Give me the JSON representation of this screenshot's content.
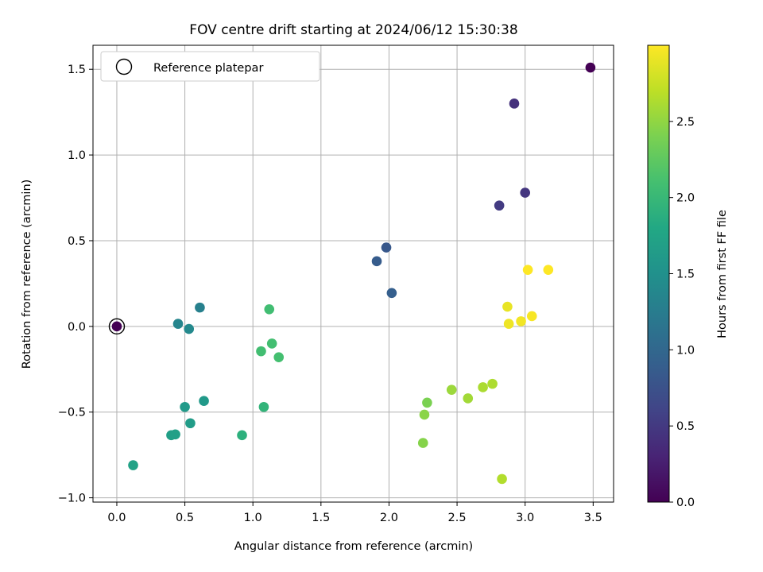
{
  "chart_data": {
    "type": "scatter",
    "title": "FOV centre drift starting at 2024/06/12 15:30:38",
    "xlabel": "Angular distance from reference (arcmin)",
    "ylabel": "Rotation from reference (arcmin)",
    "xlim": [
      -0.175,
      3.65
    ],
    "ylim": [
      -1.025,
      1.64
    ],
    "xticks": [
      0.0,
      0.5,
      1.0,
      1.5,
      2.0,
      2.5,
      3.0,
      3.5
    ],
    "xtick_labels": [
      "0.0",
      "0.5",
      "1.0",
      "1.5",
      "2.0",
      "2.5",
      "3.0",
      "3.5"
    ],
    "yticks": [
      -1.0,
      -0.5,
      0.0,
      0.5,
      1.0,
      1.5
    ],
    "ytick_labels": [
      "−1.0",
      "−0.5",
      "0.0",
      "0.5",
      "1.0",
      "1.5"
    ],
    "grid": true,
    "legend": {
      "placement": "top-left",
      "label": "Reference platepar"
    },
    "reference_point": {
      "x": 0.0,
      "y": 0.0
    },
    "colorbar": {
      "label": "Hours from first FF file",
      "colormap": "viridis",
      "range": [
        0.0,
        3.0
      ],
      "ticks": [
        0.0,
        0.5,
        1.0,
        1.5,
        2.0,
        2.5
      ],
      "tick_labels": [
        "0.0",
        "0.5",
        "1.0",
        "1.5",
        "2.0",
        "2.5"
      ]
    },
    "points": [
      {
        "x": 0.0,
        "y": 0.0,
        "c": 0.0
      },
      {
        "x": 3.48,
        "y": 1.51,
        "c": 0.0
      },
      {
        "x": 2.92,
        "y": 1.3,
        "c": 0.42
      },
      {
        "x": 3.0,
        "y": 0.78,
        "c": 0.47
      },
      {
        "x": 2.81,
        "y": 0.705,
        "c": 0.52
      },
      {
        "x": 1.98,
        "y": 0.46,
        "c": 0.82
      },
      {
        "x": 1.91,
        "y": 0.38,
        "c": 0.87
      },
      {
        "x": 2.02,
        "y": 0.195,
        "c": 0.9
      },
      {
        "x": 0.61,
        "y": 0.11,
        "c": 1.3
      },
      {
        "x": 0.45,
        "y": 0.015,
        "c": 1.35
      },
      {
        "x": 0.53,
        "y": -0.015,
        "c": 1.4
      },
      {
        "x": 0.64,
        "y": -0.435,
        "c": 1.6
      },
      {
        "x": 0.5,
        "y": -0.47,
        "c": 1.62
      },
      {
        "x": 0.54,
        "y": -0.565,
        "c": 1.65
      },
      {
        "x": 0.4,
        "y": -0.635,
        "c": 1.68
      },
      {
        "x": 0.43,
        "y": -0.63,
        "c": 1.7
      },
      {
        "x": 0.12,
        "y": -0.81,
        "c": 1.72
      },
      {
        "x": 0.92,
        "y": -0.635,
        "c": 1.9
      },
      {
        "x": 1.08,
        "y": -0.47,
        "c": 1.95
      },
      {
        "x": 1.12,
        "y": 0.1,
        "c": 2.07
      },
      {
        "x": 1.06,
        "y": -0.145,
        "c": 2.08
      },
      {
        "x": 1.14,
        "y": -0.1,
        "c": 2.09
      },
      {
        "x": 1.19,
        "y": -0.18,
        "c": 2.1
      },
      {
        "x": 2.28,
        "y": -0.445,
        "c": 2.4
      },
      {
        "x": 2.25,
        "y": -0.68,
        "c": 2.45
      },
      {
        "x": 2.26,
        "y": -0.515,
        "c": 2.47
      },
      {
        "x": 2.46,
        "y": -0.37,
        "c": 2.55
      },
      {
        "x": 2.58,
        "y": -0.42,
        "c": 2.58
      },
      {
        "x": 2.69,
        "y": -0.355,
        "c": 2.62
      },
      {
        "x": 2.76,
        "y": -0.335,
        "c": 2.63
      },
      {
        "x": 2.83,
        "y": -0.89,
        "c": 2.65
      },
      {
        "x": 2.87,
        "y": 0.115,
        "c": 2.9
      },
      {
        "x": 2.88,
        "y": 0.015,
        "c": 2.93
      },
      {
        "x": 2.97,
        "y": 0.03,
        "c": 2.95
      },
      {
        "x": 3.05,
        "y": 0.06,
        "c": 2.97
      },
      {
        "x": 3.02,
        "y": 0.33,
        "c": 3.0
      },
      {
        "x": 3.17,
        "y": 0.33,
        "c": 3.0
      }
    ]
  }
}
